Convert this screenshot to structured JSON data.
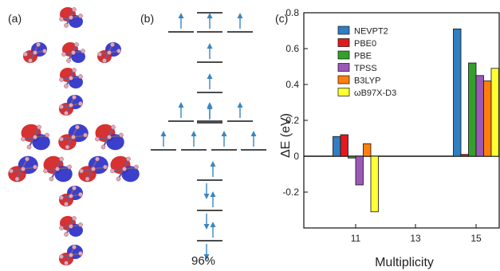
{
  "panels": {
    "a_label": "(a)",
    "b_label": "(b)",
    "c_label": "(c)",
    "b_percent": "96%"
  },
  "orbitals": {
    "lobe_colors": {
      "positive": "#d42020",
      "negative": "#2a2fc8",
      "atom": "#e7a6b8",
      "bond": "#6f5a8f"
    },
    "rows": [
      {
        "count": 1
      },
      {
        "count": 3
      },
      {
        "count": 1
      },
      {
        "count": 1
      },
      {
        "count": 3
      },
      {
        "count": 4
      },
      {
        "count": 1
      },
      {
        "count": 1
      },
      {
        "count": 1
      }
    ]
  },
  "level_diagram": {
    "line_color": "#111111",
    "arrow_color": "#3a86c0",
    "levels": [
      {
        "row": 0,
        "col": "c",
        "spin": "none"
      },
      {
        "row": 1,
        "col": "l",
        "spin": "up"
      },
      {
        "row": 1,
        "col": "c",
        "spin": "up"
      },
      {
        "row": 1,
        "col": "r",
        "spin": "up"
      },
      {
        "row": 2,
        "col": "c",
        "spin": "up"
      },
      {
        "row": 3,
        "col": "c",
        "spin": "up"
      },
      {
        "row": 4,
        "col": "c",
        "spin": "up"
      },
      {
        "row": 5,
        "col": "l",
        "spin": "up"
      },
      {
        "row": 5,
        "col": "c",
        "spin": "up"
      },
      {
        "row": 5,
        "col": "r",
        "spin": "up"
      },
      {
        "row": 6,
        "col": "ll",
        "spin": "up"
      },
      {
        "row": 6,
        "col": "lc",
        "spin": "up"
      },
      {
        "row": 6,
        "col": "rc",
        "spin": "up"
      },
      {
        "row": 6,
        "col": "rr",
        "spin": "up"
      },
      {
        "row": 7,
        "col": "c",
        "spin": "pair"
      },
      {
        "row": 8,
        "col": "c",
        "spin": "pair"
      },
      {
        "row": 9,
        "col": "c",
        "spin": "pair"
      }
    ]
  },
  "chart_data": {
    "type": "bar",
    "title": "",
    "xlabel": "Multiplicity",
    "ylabel": "ΔE (eV)",
    "categories": [
      "11",
      "13",
      "15"
    ],
    "ylim": [
      -0.4,
      0.8
    ],
    "yticks": [
      -0.2,
      0,
      0.2,
      0.4,
      0.6,
      0.8
    ],
    "grid": false,
    "legend_position": "top-left",
    "series": [
      {
        "name": "NEVPT2",
        "color": "#2f7fc1",
        "values": [
          0.11,
          null,
          0.71
        ]
      },
      {
        "name": "PBE0",
        "color": "#e31a1c",
        "values": [
          0.12,
          null,
          0.01
        ]
      },
      {
        "name": "PBE",
        "color": "#33a02c",
        "values": [
          -0.01,
          null,
          0.52
        ]
      },
      {
        "name": "TPSS",
        "color": "#9b59b6",
        "values": [
          -0.16,
          null,
          0.45
        ]
      },
      {
        "name": "B3LYP",
        "color": "#ff7f0e",
        "values": [
          0.07,
          null,
          0.42
        ]
      },
      {
        "name": "ωB97X-D3",
        "color": "#ffff33",
        "values": [
          -0.31,
          null,
          0.49
        ]
      }
    ]
  }
}
